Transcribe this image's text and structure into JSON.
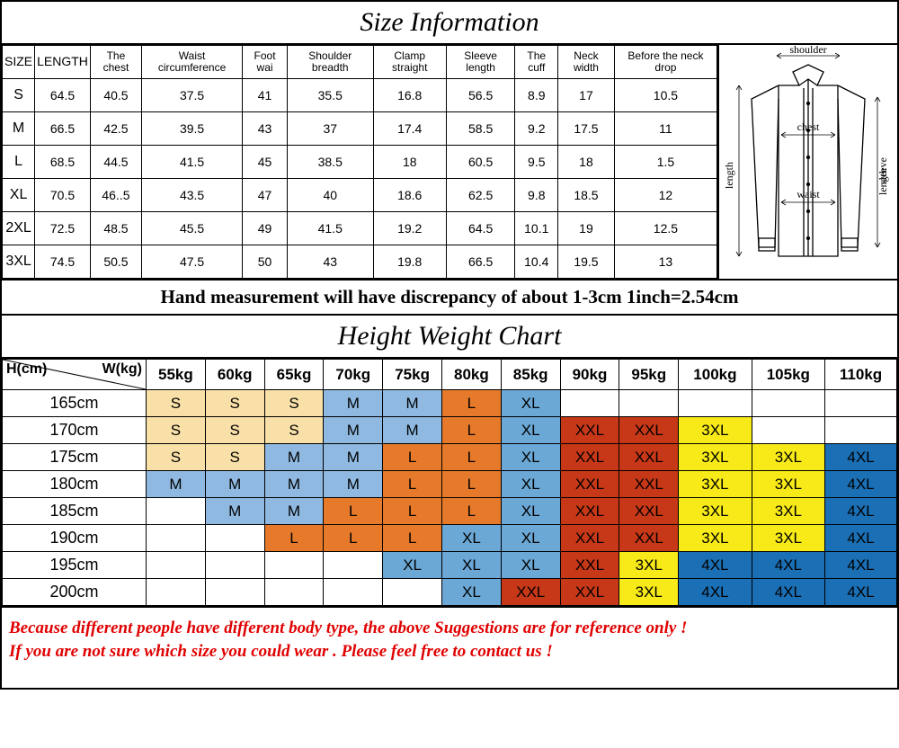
{
  "title1": "Size Information",
  "title2": "Height Weight Chart",
  "note": "Hand measurement will have discrepancy of about 1-3cm  1inch=2.54cm",
  "disclaimer1": "Because different people have different body type, the above Suggestions are for reference only !",
  "disclaimer2": "If you are not sure which size you could wear . Please feel free to contact us !",
  "shirt_labels": {
    "shoulder": "shoulder",
    "chest": "chest",
    "waist": "waist",
    "length": "length",
    "sleeve": "sleeve\nlength"
  },
  "size_cols": [
    "SIZE",
    "LENGTH",
    "The chest",
    "Waist circumference",
    "Foot wai",
    "Shoulder breadth",
    "Clamp straight",
    "Sleeve length",
    "The cuff",
    "Neck width",
    "Before the neck drop"
  ],
  "size_rows": [
    [
      "S",
      "64.5",
      "40.5",
      "37.5",
      "41",
      "35.5",
      "16.8",
      "56.5",
      "8.9",
      "17",
      "10.5"
    ],
    [
      "M",
      "66.5",
      "42.5",
      "39.5",
      "43",
      "37",
      "17.4",
      "58.5",
      "9.2",
      "17.5",
      "11"
    ],
    [
      "L",
      "68.5",
      "44.5",
      "41.5",
      "45",
      "38.5",
      "18",
      "60.5",
      "9.5",
      "18",
      "1.5"
    ],
    [
      "XL",
      "70.5",
      "46..5",
      "43.5",
      "47",
      "40",
      "18.6",
      "62.5",
      "9.8",
      "18.5",
      "12"
    ],
    [
      "2XL",
      "72.5",
      "48.5",
      "45.5",
      "49",
      "41.5",
      "19.2",
      "64.5",
      "10.1",
      "19",
      "12.5"
    ],
    [
      "3XL",
      "74.5",
      "50.5",
      "47.5",
      "50",
      "43",
      "19.8",
      "66.5",
      "10.4",
      "19.5",
      "13"
    ]
  ],
  "hw_corner": {
    "h": "H(cm)",
    "w": "W(kg)"
  },
  "hw_weights": [
    "55kg",
    "60kg",
    "65kg",
    "70kg",
    "75kg",
    "80kg",
    "85kg",
    "90kg",
    "95kg",
    "100kg",
    "105kg",
    "110kg"
  ],
  "hw_heights": [
    "165cm",
    "170cm",
    "175cm",
    "180cm",
    "185cm",
    "190cm",
    "195cm",
    "200cm"
  ],
  "hw_cells": [
    [
      [
        "S",
        "s"
      ],
      [
        "S",
        "s"
      ],
      [
        "S",
        "s"
      ],
      [
        "M",
        "m"
      ],
      [
        "M",
        "m"
      ],
      [
        "L",
        "l"
      ],
      [
        "XL",
        "xl"
      ],
      [
        "",
        ""
      ],
      [
        "",
        ""
      ],
      [
        "",
        ""
      ],
      [
        "",
        ""
      ],
      [
        "",
        ""
      ]
    ],
    [
      [
        "S",
        "s"
      ],
      [
        "S",
        "s"
      ],
      [
        "S",
        "s"
      ],
      [
        "M",
        "m"
      ],
      [
        "M",
        "m"
      ],
      [
        "L",
        "l"
      ],
      [
        "XL",
        "xl"
      ],
      [
        "XXL",
        "xxl"
      ],
      [
        "XXL",
        "xxl"
      ],
      [
        "3XL",
        "3xl"
      ],
      [
        "",
        ""
      ],
      [
        "",
        ""
      ]
    ],
    [
      [
        "S",
        "s"
      ],
      [
        "S",
        "s"
      ],
      [
        "M",
        "m"
      ],
      [
        "M",
        "m"
      ],
      [
        "L",
        "l"
      ],
      [
        "L",
        "l"
      ],
      [
        "XL",
        "xl"
      ],
      [
        "XXL",
        "xxl"
      ],
      [
        "XXL",
        "xxl"
      ],
      [
        "3XL",
        "3xl"
      ],
      [
        "3XL",
        "3xl"
      ],
      [
        "4XL",
        "4xl"
      ]
    ],
    [
      [
        "M",
        "m"
      ],
      [
        "M",
        "m"
      ],
      [
        "M",
        "m"
      ],
      [
        "M",
        "m"
      ],
      [
        "L",
        "l"
      ],
      [
        "L",
        "l"
      ],
      [
        "XL",
        "xl"
      ],
      [
        "XXL",
        "xxl"
      ],
      [
        "XXL",
        "xxl"
      ],
      [
        "3XL",
        "3xl"
      ],
      [
        "3XL",
        "3xl"
      ],
      [
        "4XL",
        "4xl"
      ]
    ],
    [
      [
        "",
        ""
      ],
      [
        "M",
        "m"
      ],
      [
        "M",
        "m"
      ],
      [
        "L",
        "l"
      ],
      [
        "L",
        "l"
      ],
      [
        "L",
        "l"
      ],
      [
        "XL",
        "xl"
      ],
      [
        "XXL",
        "xxl"
      ],
      [
        "XXL",
        "xxl"
      ],
      [
        "3XL",
        "3xl"
      ],
      [
        "3XL",
        "3xl"
      ],
      [
        "4XL",
        "4xl"
      ]
    ],
    [
      [
        "",
        ""
      ],
      [
        "",
        ""
      ],
      [
        "L",
        "l"
      ],
      [
        "L",
        "l"
      ],
      [
        "L",
        "l"
      ],
      [
        "XL",
        "xl"
      ],
      [
        "XL",
        "xl"
      ],
      [
        "XXL",
        "xxl"
      ],
      [
        "XXL",
        "xxl"
      ],
      [
        "3XL",
        "3xl"
      ],
      [
        "3XL",
        "3xl"
      ],
      [
        "4XL",
        "4xl"
      ]
    ],
    [
      [
        "",
        ""
      ],
      [
        "",
        ""
      ],
      [
        "",
        ""
      ],
      [
        "",
        ""
      ],
      [
        "XL",
        "xl"
      ],
      [
        "XL",
        "xl"
      ],
      [
        "XL",
        "xl"
      ],
      [
        "XXL",
        "xxl"
      ],
      [
        "3XL",
        "3xl"
      ],
      [
        "4XL",
        "4xl"
      ],
      [
        "4XL",
        "4xl"
      ],
      [
        "4XL",
        "4xl"
      ]
    ],
    [
      [
        "",
        ""
      ],
      [
        "",
        ""
      ],
      [
        "",
        ""
      ],
      [
        "",
        ""
      ],
      [
        "",
        ""
      ],
      [
        "XL",
        "xl"
      ],
      [
        "XXL",
        "xxl"
      ],
      [
        "XXL",
        "xxl"
      ],
      [
        "3XL",
        "3xl"
      ],
      [
        "4XL",
        "4xl"
      ],
      [
        "4XL",
        "4xl"
      ],
      [
        "4XL",
        "4xl"
      ]
    ]
  ],
  "colors": {
    "s": "#f9e0a8",
    "m": "#8fb9e0",
    "l": "#e67a2a",
    "xl": "#6ca8d6",
    "xxl": "#c73818",
    "3xl": "#f7ea18",
    "4xl": "#1b6fb5",
    "": "#ffffff"
  }
}
